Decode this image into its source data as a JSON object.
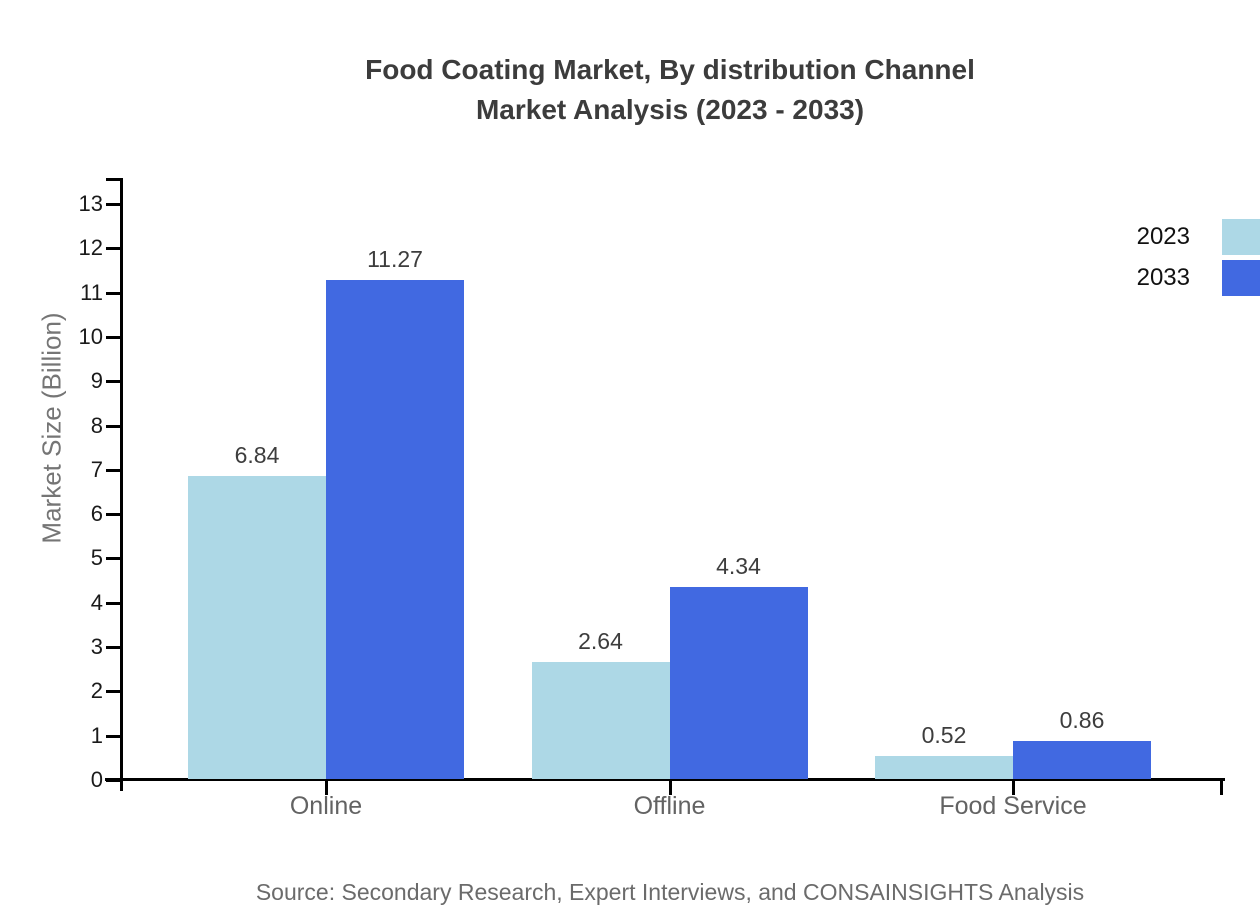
{
  "title": {
    "line1": "Food Coating Market, By distribution Channel",
    "line2": "Market Analysis (2023 - 2033)"
  },
  "source": "Source: Secondary Research, Expert Interviews, and CONSAINSIGHTS Analysis",
  "chart_data": {
    "type": "bar",
    "title": "Food Coating Market, By distribution Channel Market Analysis (2023 - 2033)",
    "categories": [
      "Online",
      "Offline",
      "Food Service"
    ],
    "series": [
      {
        "name": "2023",
        "color": "#ADD8E6",
        "values": [
          6.84,
          2.64,
          0.52
        ]
      },
      {
        "name": "2033",
        "color": "#4169E1",
        "values": [
          11.27,
          4.34,
          0.86
        ]
      }
    ],
    "value_labels": [
      "6.84",
      "2.64",
      "0.52",
      "11.27",
      "4.34",
      "0.86"
    ],
    "xlabel": "",
    "ylabel": "Market Size (Billion)",
    "ylim": [
      0,
      13
    ],
    "ytick_step": 1,
    "yticks": [
      "0",
      "1",
      "2",
      "3",
      "4",
      "5",
      "6",
      "7",
      "8",
      "9",
      "10",
      "11",
      "12",
      "13"
    ],
    "grid": false,
    "legend_position": "top-right",
    "axis_color": "#000000",
    "text_colors": {
      "title": "#3c3c3c",
      "tick_labels": "#1a1a1a",
      "category_labels": "#636363",
      "value_labels": "#3d3d3d",
      "axis_title": "#757575",
      "source": "#6b6b6b"
    }
  }
}
